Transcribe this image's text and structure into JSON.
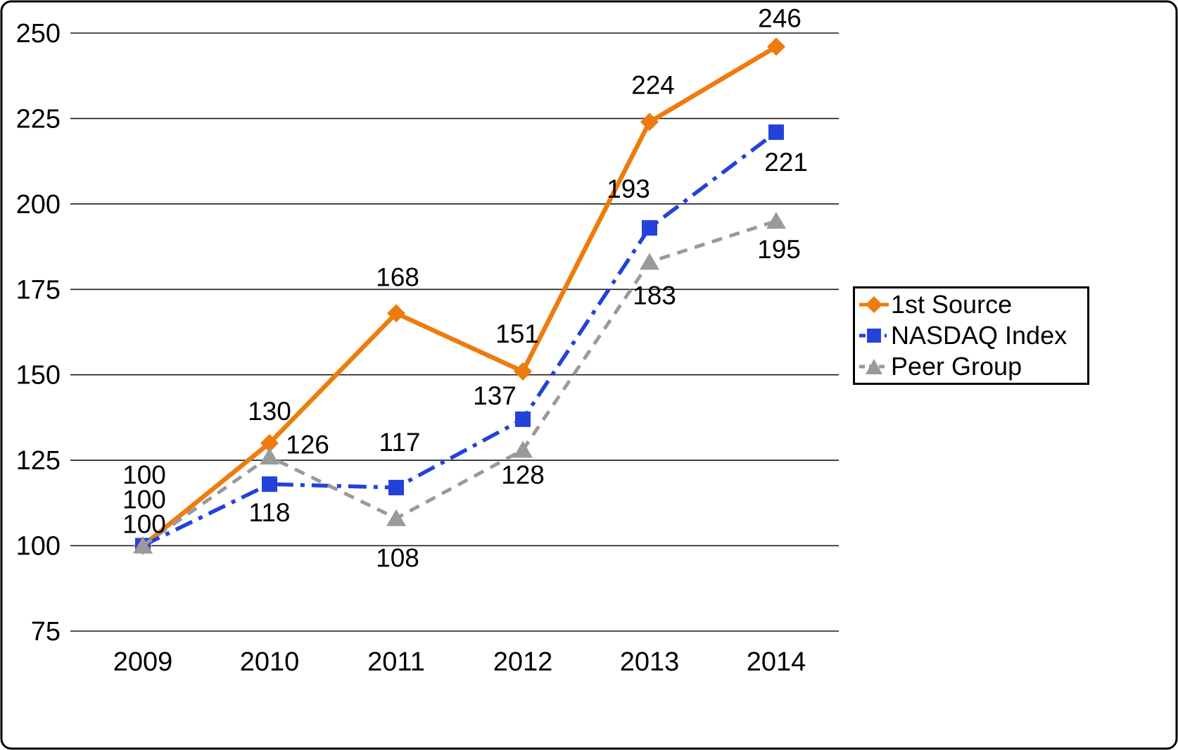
{
  "chart_data": {
    "type": "line",
    "title": "",
    "x": [
      "2009",
      "2010",
      "2011",
      "2012",
      "2013",
      "2014"
    ],
    "xlabel": "",
    "ylabel": "",
    "ylim": [
      75,
      250
    ],
    "yticks": [
      75,
      100,
      125,
      150,
      175,
      200,
      225,
      250
    ],
    "grid": "horizontal",
    "series": [
      {
        "name": "1st Source",
        "values": [
          100,
          130,
          168,
          151,
          224,
          246
        ],
        "color": "#ED7C0E",
        "marker": "diamond",
        "line_style": "solid",
        "label_offsets": [
          [
            2,
            -88
          ],
          [
            0,
            -33
          ],
          [
            2,
            -39
          ],
          [
            -8,
            -41
          ],
          [
            5,
            -40
          ],
          [
            5,
            -28
          ]
        ]
      },
      {
        "name": "NASDAQ Index",
        "values": [
          100,
          118,
          117,
          137,
          193,
          221
        ],
        "color": "#2442D9",
        "marker": "square",
        "line_style": "dashdot",
        "label_offsets": [
          [
            2,
            -53
          ],
          [
            0,
            53
          ],
          [
            5,
            -52
          ],
          [
            -40,
            -21
          ],
          [
            -30,
            -43
          ],
          [
            14,
            55
          ]
        ]
      },
      {
        "name": "Peer Group",
        "values": [
          100,
          126,
          108,
          128,
          183,
          195
        ],
        "color": "#9A9A9A",
        "marker": "triangle",
        "line_style": "dashed",
        "label_offsets": [
          [
            2,
            -18
          ],
          [
            54,
            -5
          ],
          [
            2,
            69
          ],
          [
            0,
            48
          ],
          [
            7,
            60
          ],
          [
            4,
            53
          ]
        ]
      }
    ],
    "legend": {
      "position": "right",
      "border": true,
      "items": [
        "1st Source",
        "NASDAQ Index",
        "Peer Group"
      ]
    }
  },
  "frame": {
    "background": "#FFFFFF",
    "border_color": "#000000",
    "grid_color": "#1A1A1A",
    "text_color": "#000000"
  }
}
